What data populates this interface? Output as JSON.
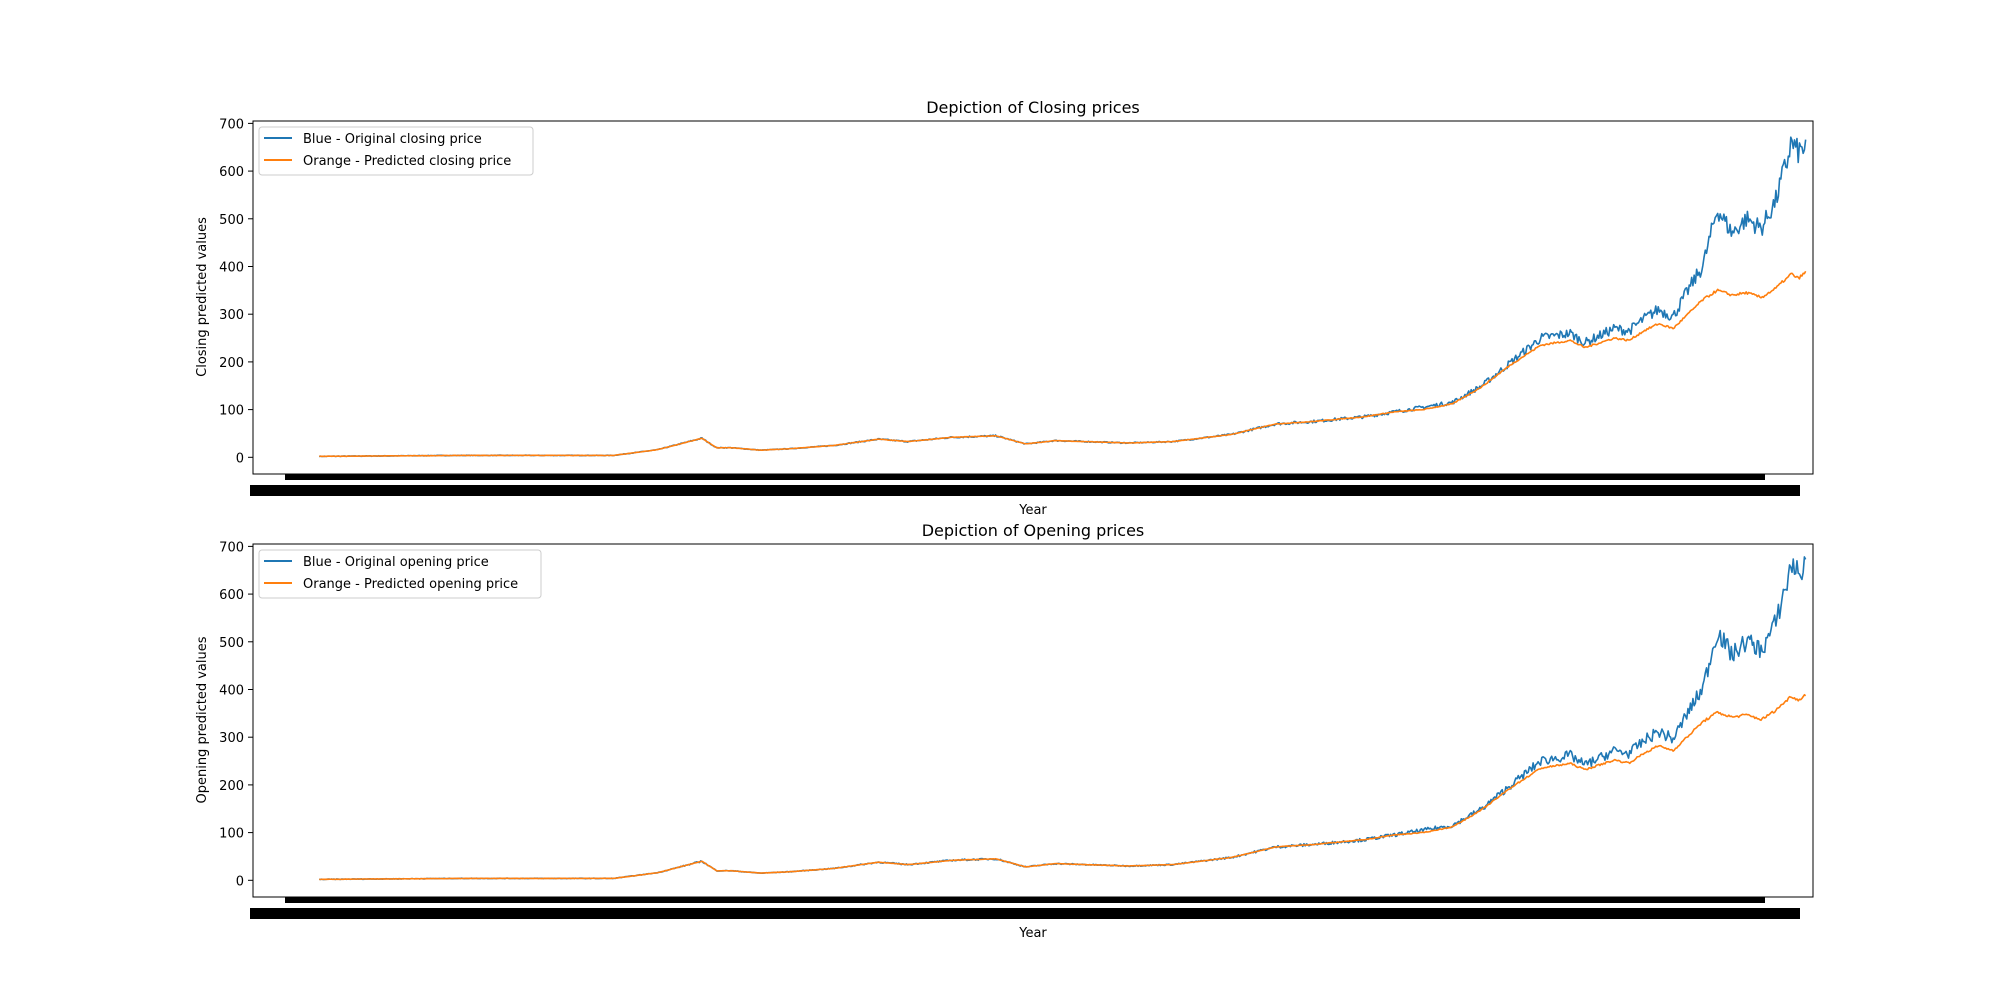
{
  "chart_data": [
    {
      "type": "line",
      "title": "Depiction of Closing prices",
      "xlabel": "Year",
      "ylabel": "Closing predicted values",
      "yticks": [
        0,
        100,
        200,
        300,
        400,
        500,
        600,
        700
      ],
      "ylim": [
        -35,
        705
      ],
      "xlim": [
        -90,
        2030
      ],
      "grid": false,
      "legend": "upper-left",
      "colors": {
        "original": "#1f77b4",
        "predicted": "#ff7f0e"
      },
      "x": [
        0,
        200,
        400,
        460,
        500,
        520,
        540,
        560,
        600,
        640,
        700,
        760,
        800,
        860,
        920,
        960,
        1000,
        1060,
        1100,
        1160,
        1240,
        1300,
        1350,
        1420,
        1460,
        1500,
        1540,
        1580,
        1620,
        1660,
        1700,
        1720,
        1740,
        1760,
        1780,
        1800,
        1820,
        1840,
        1860,
        1880,
        1900,
        1920,
        1940,
        1960,
        1980,
        1990,
        1995,
        2000,
        2010,
        2020
      ],
      "series": [
        {
          "name": "Blue - Original closing price",
          "values": [
            2,
            4,
            4,
            16,
            32,
            40,
            20,
            20,
            15,
            18,
            25,
            38,
            33,
            42,
            45,
            28,
            35,
            32,
            30,
            33,
            48,
            70,
            75,
            85,
            95,
            105,
            115,
            150,
            200,
            250,
            260,
            240,
            255,
            270,
            265,
            290,
            310,
            295,
            350,
            400,
            520,
            470,
            500,
            480,
            540,
            600,
            620,
            660,
            640,
            650
          ]
        },
        {
          "name": "Orange - Predicted closing price",
          "values": [
            2,
            4,
            4,
            16,
            32,
            40,
            20,
            20,
            15,
            18,
            25,
            38,
            33,
            42,
            45,
            28,
            35,
            32,
            30,
            33,
            48,
            70,
            75,
            85,
            95,
            100,
            112,
            148,
            195,
            235,
            245,
            230,
            240,
            250,
            245,
            265,
            280,
            270,
            300,
            330,
            350,
            340,
            345,
            335,
            355,
            370,
            375,
            385,
            375,
            388
          ]
        }
      ]
    },
    {
      "type": "line",
      "title": "Depiction of Opening prices",
      "xlabel": "Year",
      "ylabel": "Opening predicted values",
      "yticks": [
        0,
        100,
        200,
        300,
        400,
        500,
        600,
        700
      ],
      "ylim": [
        -35,
        705
      ],
      "xlim": [
        -90,
        2030
      ],
      "grid": false,
      "legend": "upper-left",
      "colors": {
        "original": "#1f77b4",
        "predicted": "#ff7f0e"
      },
      "x": [
        0,
        200,
        400,
        460,
        500,
        520,
        540,
        560,
        600,
        640,
        700,
        760,
        800,
        860,
        920,
        960,
        1000,
        1060,
        1100,
        1160,
        1240,
        1300,
        1350,
        1420,
        1460,
        1500,
        1540,
        1580,
        1620,
        1660,
        1700,
        1720,
        1740,
        1760,
        1780,
        1800,
        1820,
        1840,
        1860,
        1880,
        1900,
        1920,
        1940,
        1960,
        1980,
        1990,
        1995,
        2000,
        2010,
        2020
      ],
      "series": [
        {
          "name": "Blue - Original opening price",
          "values": [
            2,
            4,
            4,
            16,
            32,
            40,
            20,
            20,
            15,
            18,
            25,
            38,
            33,
            42,
            45,
            28,
            35,
            32,
            30,
            33,
            48,
            70,
            75,
            85,
            95,
            105,
            115,
            150,
            200,
            250,
            262,
            242,
            256,
            272,
            266,
            292,
            312,
            296,
            352,
            402,
            522,
            472,
            502,
            482,
            542,
            602,
            622,
            665,
            645,
            655
          ]
        },
        {
          "name": "Orange - Predicted opening price",
          "values": [
            2,
            4,
            4,
            16,
            32,
            40,
            20,
            20,
            15,
            18,
            25,
            38,
            33,
            42,
            45,
            28,
            35,
            32,
            30,
            33,
            48,
            70,
            75,
            85,
            95,
            100,
            112,
            148,
            195,
            235,
            245,
            232,
            242,
            252,
            246,
            266,
            282,
            272,
            302,
            332,
            352,
            342,
            347,
            337,
            357,
            372,
            377,
            387,
            377,
            390
          ]
        }
      ]
    }
  ]
}
